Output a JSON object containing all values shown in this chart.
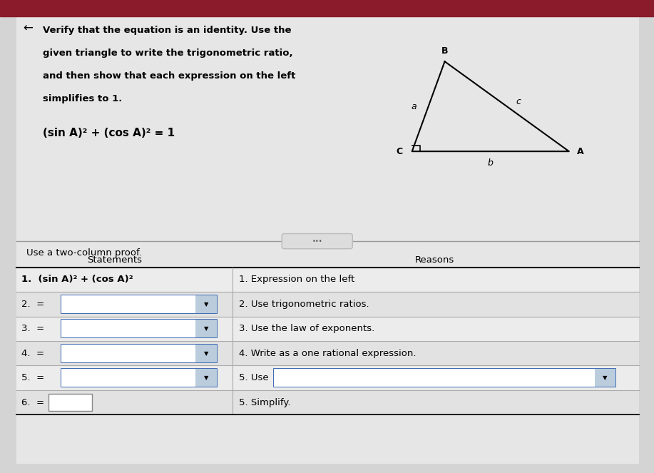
{
  "bg_color": "#c8c8c8",
  "title_text_lines": [
    "Verify that the equation is an identity. Use the",
    "given triangle to write the trigonometric ratio,",
    "and then show that each expression on the left",
    "simplifies to 1."
  ],
  "equation": "(sin A)² + (cos A)² = 1",
  "two_col_label": "Use a two-column proof.",
  "col1_header": "Statements",
  "col2_header": "Reasons",
  "rows": [
    {
      "stmt": "1.  (sin A)² + (cos A)²",
      "reason": "1. Expression on the left",
      "stmt_has_box": false,
      "reason_has_box": false,
      "small_box": false
    },
    {
      "stmt": "2.  =",
      "reason": "2. Use trigonometric ratios.",
      "stmt_has_box": true,
      "reason_has_box": false,
      "small_box": false
    },
    {
      "stmt": "3.  =",
      "reason": "3. Use the law of exponents.",
      "stmt_has_box": true,
      "reason_has_box": false,
      "small_box": false
    },
    {
      "stmt": "4.  =",
      "reason": "4. Write as a one rational expression.",
      "stmt_has_box": true,
      "reason_has_box": false,
      "small_box": false
    },
    {
      "stmt": "5.  =",
      "reason": "5. Use",
      "stmt_has_box": true,
      "reason_has_box": true,
      "small_box": false
    },
    {
      "stmt": "6.  =",
      "reason": "5. Simplify.",
      "stmt_has_box": false,
      "reason_has_box": false,
      "small_box": true
    }
  ],
  "tri_B": [
    0.68,
    0.87
  ],
  "tri_C": [
    0.63,
    0.68
  ],
  "tri_A": [
    0.87,
    0.68
  ],
  "page_bg": "#d4d4d4",
  "content_bg": "#e6e6e6",
  "top_stripe_color": "#8b1a2a",
  "font_size_title": 9.5,
  "font_size_eq": 11,
  "font_size_table": 9.5
}
